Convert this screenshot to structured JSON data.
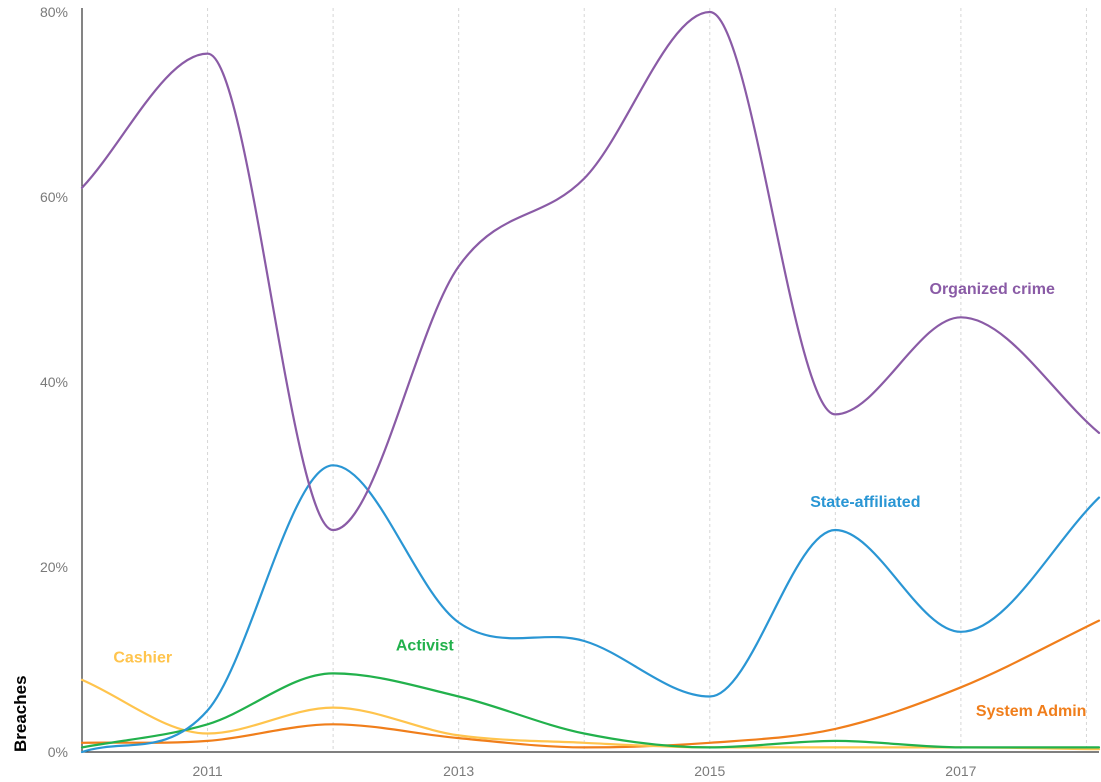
{
  "chart_data": {
    "type": "line",
    "ylabel": "Breaches",
    "xlabel": "",
    "xlim": [
      2010,
      2018.1
    ],
    "ylim": [
      0,
      80
    ],
    "x_ticks": [
      2011,
      2013,
      2015,
      2017
    ],
    "x_tick_labels": [
      "2011",
      "2013",
      "2015",
      "2017"
    ],
    "y_ticks": [
      0,
      20,
      40,
      60,
      80
    ],
    "y_tick_labels": [
      "0%",
      "20%",
      "40%",
      "60%",
      "80%"
    ],
    "grid": "vertical dashed at each year",
    "x": [
      2010,
      2011,
      2012,
      2013,
      2014,
      2015,
      2016,
      2017,
      2018.1
    ],
    "series": [
      {
        "name": "Organized crime",
        "color": "#8a5ba6",
        "values": [
          61,
          75.5,
          24,
          52.5,
          62,
          80,
          36.5,
          47,
          34.5
        ],
        "label_x": 2016.75,
        "label_y": 49.5
      },
      {
        "name": "State-affiliated",
        "color": "#2a96d4",
        "values": [
          0,
          4.5,
          31,
          14,
          12,
          6,
          24,
          13,
          27.5
        ],
        "label_x": 2015.8,
        "label_y": 26.5
      },
      {
        "name": "Activist",
        "color": "#22b14c",
        "values": [
          0.5,
          3,
          8.5,
          6,
          2,
          0.5,
          1.2,
          0.5,
          0.5
        ],
        "label_x": 2012.5,
        "label_y": 11
      },
      {
        "name": "Cashier",
        "color": "#ffc44d",
        "values": [
          7.8,
          2,
          4.8,
          1.8,
          1,
          0.5,
          0.5,
          0.5,
          0.3
        ],
        "label_x": 2010.25,
        "label_y": 9.7
      },
      {
        "name": "System Admin",
        "color": "#f07e1b",
        "values": [
          1,
          1.2,
          3,
          1.5,
          0.5,
          1,
          2.5,
          7,
          14.2
        ],
        "label_x": 2018.0,
        "label_y": 3.9,
        "anchor": "end"
      }
    ]
  }
}
